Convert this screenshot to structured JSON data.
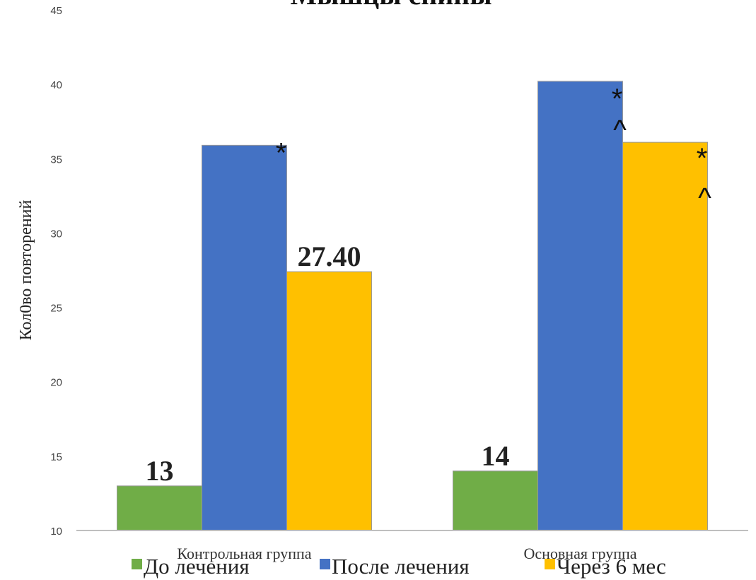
{
  "chart_data": {
    "type": "bar",
    "title": "Мышцы спины",
    "ylabel": "Кол0во повторений",
    "xlabel": "",
    "ylim": [
      10,
      45
    ],
    "yticks": [
      "10",
      "15",
      "20",
      "25",
      "30",
      "35",
      "40",
      "45"
    ],
    "categories": [
      "Контрольная группа",
      "Основная группа"
    ],
    "series": [
      {
        "name": "До лечения",
        "color": "#70ad47",
        "values": [
          13,
          14
        ]
      },
      {
        "name": "После лечения",
        "color": "#4472c4",
        "values": [
          35.9,
          40.2
        ]
      },
      {
        "name": "Через 6 мес",
        "color": "#ffc000",
        "values": [
          27.4,
          36.1
        ]
      }
    ],
    "data_labels": [
      {
        "series": 0,
        "category": 0,
        "text": "13"
      },
      {
        "series": 2,
        "category": 0,
        "text": "27.40"
      },
      {
        "series": 0,
        "category": 1,
        "text": "14"
      }
    ],
    "annotations": [
      {
        "series": 1,
        "category": 0,
        "text": "*"
      },
      {
        "series": 1,
        "category": 1,
        "text": "*"
      },
      {
        "series": 1,
        "category": 1,
        "text": "^"
      },
      {
        "series": 2,
        "category": 1,
        "text": "*"
      },
      {
        "series": 2,
        "category": 1,
        "text": "^"
      }
    ],
    "legend": "bottom",
    "grid": false
  }
}
